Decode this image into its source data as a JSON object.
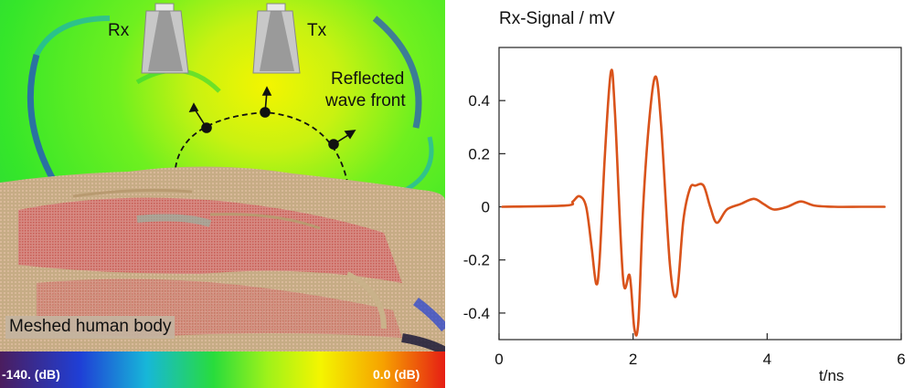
{
  "simulation": {
    "rx_label": "Rx",
    "tx_label": "Tx",
    "annotation_line1": "Reflected",
    "annotation_line2": "wave front",
    "body_label": "Meshed human body",
    "colorbar_min_label": "-140. (dB)",
    "colorbar_max_label": "0.0 (dB)",
    "colors": {
      "field_green": "#3ff02a",
      "field_yellow": "#f4f500",
      "field_blue": "#1f3fd6",
      "tissue": "#c6ac85",
      "tissue_red": "#d64f4f"
    }
  },
  "chart_data": {
    "type": "line",
    "title": "Rx-Signal / mV",
    "xlabel": "t/ns",
    "ylabel": "",
    "xlim": [
      0,
      6
    ],
    "ylim": [
      -0.5,
      0.6
    ],
    "x_ticks": [
      0,
      2,
      4,
      6
    ],
    "y_ticks": [
      0.4,
      0.2,
      0,
      -0.2,
      -0.4
    ],
    "x_tick_labels": [
      "0",
      "2",
      "4",
      "6"
    ],
    "y_tick_labels": [
      "0.4",
      "0.2",
      "0",
      "-0.2",
      "-0.4"
    ],
    "grid": false,
    "series": [
      {
        "name": "Rx-Signal",
        "color": "#d9531b",
        "x": [
          0.05,
          1.0,
          1.1,
          1.2,
          1.3,
          1.38,
          1.45,
          1.5,
          1.58,
          1.67,
          1.73,
          1.85,
          1.95,
          2.02,
          2.08,
          2.15,
          2.25,
          2.34,
          2.42,
          2.55,
          2.65,
          2.75,
          2.85,
          2.93,
          3.05,
          3.15,
          3.25,
          3.4,
          3.6,
          3.8,
          3.95,
          4.1,
          4.3,
          4.5,
          4.7,
          5.0,
          5.4,
          5.75
        ],
        "y": [
          0.0,
          0.005,
          0.02,
          0.04,
          0.0,
          -0.15,
          -0.29,
          -0.2,
          0.2,
          0.51,
          0.35,
          -0.27,
          -0.26,
          -0.46,
          -0.43,
          0.0,
          0.35,
          0.49,
          0.3,
          -0.22,
          -0.33,
          -0.05,
          0.07,
          0.08,
          0.08,
          0.0,
          -0.06,
          -0.01,
          0.01,
          0.03,
          0.01,
          -0.01,
          0.0,
          0.02,
          0.005,
          0.0,
          0.0,
          0.0
        ]
      }
    ]
  }
}
